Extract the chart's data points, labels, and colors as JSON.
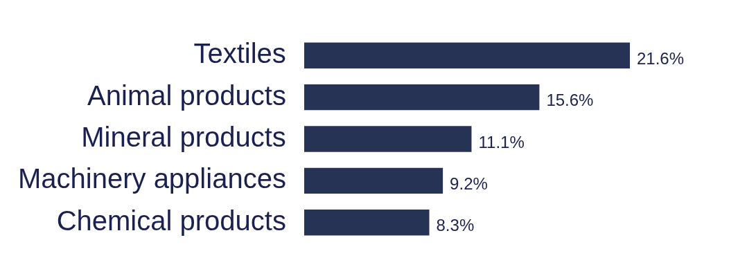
{
  "chart_data": {
    "type": "bar",
    "orientation": "horizontal",
    "categories": [
      "Textiles",
      "Animal products",
      "Mineral products",
      "Machinery appliances",
      "Chemical products"
    ],
    "values": [
      21.6,
      15.6,
      11.1,
      9.2,
      8.3
    ],
    "value_labels": [
      "21.6%",
      "15.6%",
      "11.1%",
      "9.2%",
      "8.3%"
    ],
    "color": "#263354",
    "grid": false,
    "legend": false
  }
}
